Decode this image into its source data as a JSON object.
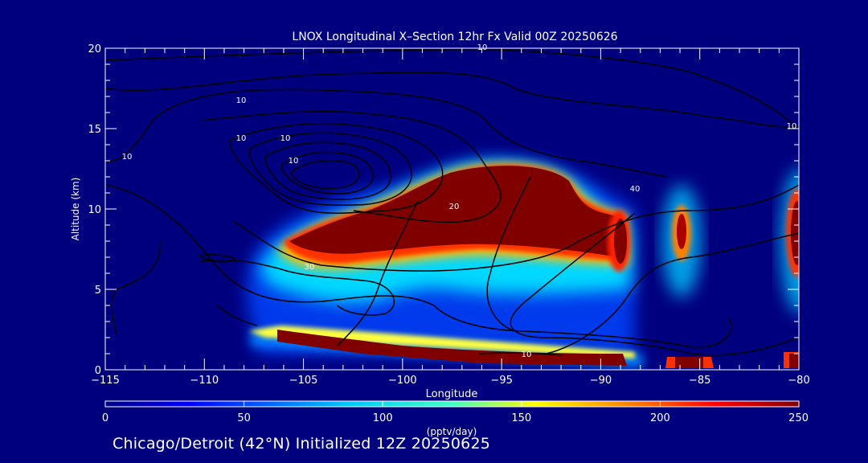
{
  "chart_data": {
    "type": "heatmap",
    "title": "LNOX Longitudinal X–Section 12hr  Fx Valid 00Z 20250626",
    "xlabel": "Longitude",
    "ylabel": "Altitude (km)",
    "xlim": [
      -115,
      -80
    ],
    "ylim": [
      0,
      20
    ],
    "x_ticks": [
      -115,
      -110,
      -105,
      -100,
      -95,
      -90,
      -85,
      -80
    ],
    "x_tick_labels": [
      "−115",
      "−110",
      "−105",
      "−100",
      "−95",
      "−90",
      "−85",
      "−80"
    ],
    "y_ticks": [
      0,
      5,
      10,
      15,
      20
    ],
    "y_tick_labels": [
      "0",
      "5",
      "10",
      "15",
      "20"
    ],
    "colorbar": {
      "label": "(pptv/day)",
      "min": 0,
      "max": 250,
      "ticks": [
        0,
        50,
        100,
        150,
        200,
        250
      ],
      "tick_labels": [
        "0",
        "50",
        "100",
        "150",
        "200",
        "250"
      ],
      "colormap": "jet"
    },
    "field_cells": [
      {
        "lon_range": [
          -108.5,
          -91
        ],
        "alt_range": [
          7.5,
          12.5
        ],
        "value": 250
      },
      {
        "lon_range": [
          -90,
          -88.5
        ],
        "alt_range": [
          6.5,
          10
        ],
        "value": 240
      },
      {
        "lon_range": [
          -86.5,
          -85.5
        ],
        "alt_range": [
          7.5,
          10
        ],
        "value": 230
      },
      {
        "lon_range": [
          -81,
          -80
        ],
        "alt_range": [
          7,
          11
        ],
        "value": 240
      },
      {
        "lon_range": [
          -106.5,
          -88.5
        ],
        "alt_range": [
          0.3,
          1.6
        ],
        "value": 250
      },
      {
        "lon_range": [
          -87,
          -84.5
        ],
        "alt_range": [
          0,
          0.6
        ],
        "value": 220
      },
      {
        "lon_range": [
          -81,
          -80
        ],
        "alt_range": [
          0,
          0.8
        ],
        "value": 220
      }
    ],
    "contour_labels": [
      "10",
      "10",
      "10",
      "10",
      "20",
      "30",
      "40",
      "10",
      "10",
      "10",
      "10"
    ],
    "footer": "Chicago/Detroit (42°N) Initialized 12Z 20250625"
  }
}
